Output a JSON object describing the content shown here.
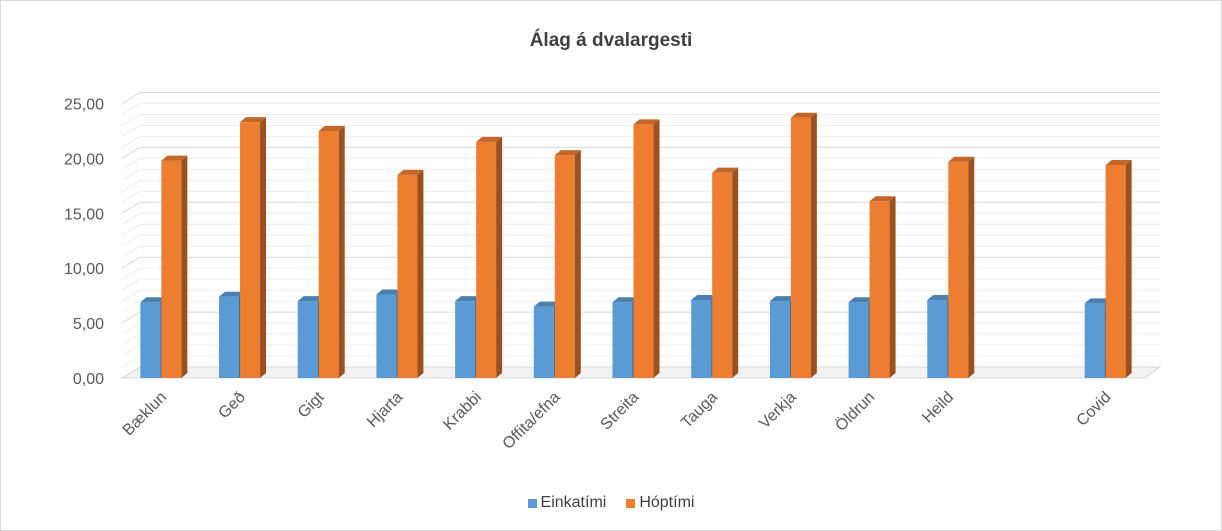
{
  "chart_data": {
    "type": "bar",
    "title": "Álag á dvalargesti",
    "categories": [
      "Bæklun",
      "Geð",
      "Gigt",
      "Hjarta",
      "Krabbi",
      "Offita/efna",
      "Streita",
      "Tauga",
      "Verkja",
      "Öldrun",
      "Heild",
      "",
      "Covid"
    ],
    "series": [
      {
        "name": "Einkatími",
        "color": "#5B9BD5",
        "values": [
          6.9,
          7.4,
          7.0,
          7.6,
          7.0,
          6.5,
          6.9,
          7.1,
          7.0,
          6.9,
          7.1,
          null,
          6.8
        ]
      },
      {
        "name": "Hóptími",
        "color": "#ED7D31",
        "values": [
          19.8,
          23.3,
          22.5,
          18.5,
          21.5,
          20.3,
          23.1,
          18.7,
          23.7,
          16.1,
          19.7,
          null,
          19.4
        ]
      }
    ],
    "yticks": [
      "0,00",
      "5,00",
      "10,00",
      "15,00",
      "20,00",
      "25,00"
    ],
    "ylim": [
      0,
      25
    ],
    "grid": true,
    "legend_position": "bottom",
    "style": "3d-clustered-column"
  }
}
